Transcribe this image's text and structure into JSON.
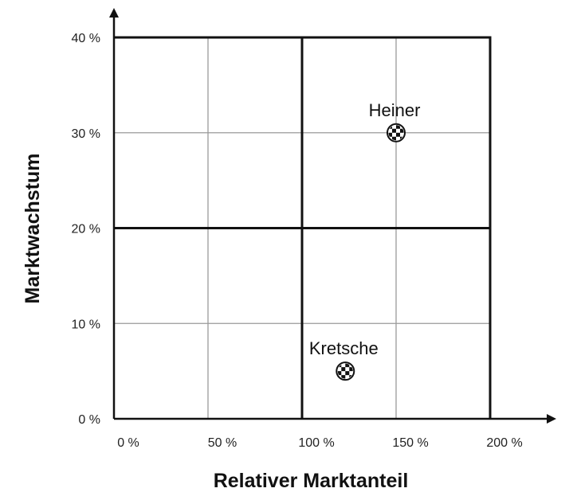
{
  "chart_data": {
    "type": "scatter",
    "title": "",
    "xlabel": "Relativer Marktanteil",
    "ylabel": "Marktwachstum",
    "xlim": [
      0,
      200
    ],
    "ylim": [
      0,
      40
    ],
    "x_ticks": [
      0,
      50,
      100,
      150,
      200
    ],
    "y_ticks": [
      0,
      10,
      20,
      30,
      40
    ],
    "x_tick_labels": [
      "0 %",
      "50 %",
      "100 %",
      "150 %",
      "200 %"
    ],
    "y_tick_labels": [
      "0 %",
      "10 %",
      "20 %",
      "30 %",
      "40 %"
    ],
    "major_lines_x": [
      100,
      200
    ],
    "major_lines_y": [
      20,
      40
    ],
    "grid": true,
    "points": [
      {
        "label": "Heiner",
        "x": 150,
        "y": 30
      },
      {
        "label": "Kretsche",
        "x": 123,
        "y": 5
      }
    ],
    "colors": {
      "axis": "#111111",
      "grid": "#9a9a9a",
      "marker": "#111111"
    }
  }
}
